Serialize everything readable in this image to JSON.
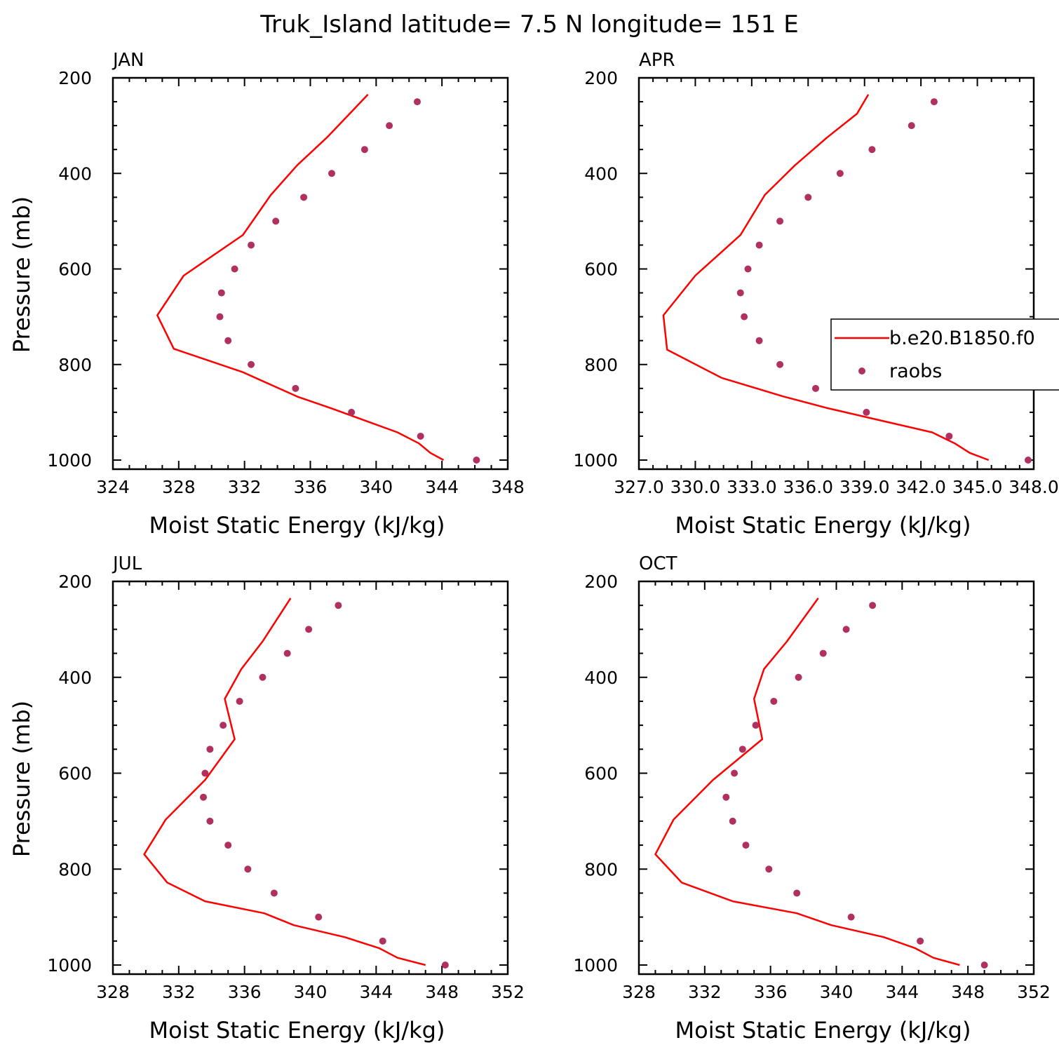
{
  "title": "Truk_Island  latitude= 7.5 N longitude= 151 E",
  "colors": {
    "model": "#ff0000",
    "obs": "#b03060",
    "axis": "#000000"
  },
  "legend": {
    "model_label": "b.e20.B1850.f0",
    "obs_label": "raobs"
  },
  "chart_data": [
    {
      "type": "line",
      "panel": "JAN",
      "xlabel": "Moist Static Energy (kJ/kg)",
      "ylabel": "Pressure (mb)",
      "xlim": [
        324,
        348
      ],
      "ylim": [
        1000,
        200
      ],
      "xticks": [
        324,
        328,
        332,
        336,
        340,
        344,
        348
      ],
      "xtick_labels": [
        "324",
        "328",
        "332",
        "336",
        "340",
        "344",
        "348"
      ],
      "yticks": [
        200,
        400,
        600,
        800,
        1000
      ],
      "ytick_labels": [
        "200",
        "400",
        "600",
        "800",
        "1000"
      ],
      "series": [
        {
          "name": "b.e20.B1850.f0",
          "kind": "line",
          "x": [
            344.1,
            343.3,
            342.6,
            341.3,
            337.3,
            335.2,
            331.9,
            327.7,
            326.7,
            328.3,
            331.9,
            333.6,
            335.2,
            337.0,
            339.5
          ],
          "y": [
            1000,
            985,
            965,
            942,
            892,
            867,
            816,
            767,
            697,
            614,
            529,
            445,
            383,
            325,
            235
          ]
        },
        {
          "name": "raobs",
          "kind": "scatter",
          "x": [
            346.1,
            342.7,
            338.5,
            335.1,
            332.4,
            331.0,
            330.5,
            330.6,
            331.4,
            332.4,
            333.9,
            335.6,
            337.3,
            339.3,
            340.8,
            342.5
          ],
          "y": [
            1000,
            950,
            900,
            850,
            800,
            750,
            700,
            650,
            600,
            550,
            500,
            450,
            400,
            350,
            300,
            250
          ]
        }
      ]
    },
    {
      "type": "line",
      "panel": "APR",
      "xlabel": "Moist Static Energy (kJ/kg)",
      "ylabel": "",
      "xlim": [
        327,
        348
      ],
      "ylim": [
        1000,
        200
      ],
      "xticks": [
        327,
        330,
        333,
        336,
        339,
        342,
        345,
        348
      ],
      "xtick_labels": [
        "327.0",
        "330.0",
        "333.0",
        "336.0",
        "339.0",
        "342.0",
        "345.0",
        "348.0"
      ],
      "yticks": [
        200,
        400,
        600,
        800,
        1000
      ],
      "ytick_labels": [
        "200",
        "400",
        "600",
        "800",
        "1000"
      ],
      "series": [
        {
          "name": "b.e20.B1850.f0",
          "kind": "line",
          "x": [
            345.6,
            344.6,
            343.8,
            342.6,
            337.1,
            334.7,
            331.4,
            328.5,
            328.3,
            330.0,
            332.4,
            333.7,
            335.3,
            337.0,
            338.6,
            339.2
          ],
          "y": [
            1000,
            985,
            965,
            942,
            892,
            867,
            828,
            769,
            697,
            614,
            529,
            445,
            383,
            325,
            275,
            235
          ]
        },
        {
          "name": "raobs",
          "kind": "scatter",
          "x": [
            347.7,
            343.5,
            339.1,
            336.4,
            334.5,
            333.4,
            332.6,
            332.4,
            332.8,
            333.4,
            334.5,
            336.0,
            337.7,
            339.4,
            341.5,
            342.7
          ],
          "y": [
            1000,
            950,
            900,
            850,
            800,
            750,
            700,
            650,
            600,
            550,
            500,
            450,
            400,
            350,
            300,
            250
          ]
        }
      ]
    },
    {
      "type": "line",
      "panel": "JUL",
      "xlabel": "Moist Static Energy (kJ/kg)",
      "ylabel": "Pressure (mb)",
      "xlim": [
        328,
        352
      ],
      "ylim": [
        1000,
        200
      ],
      "xticks": [
        328,
        332,
        336,
        340,
        344,
        348,
        352
      ],
      "xtick_labels": [
        "328",
        "332",
        "336",
        "340",
        "344",
        "348",
        "352"
      ],
      "yticks": [
        200,
        400,
        600,
        800,
        1000
      ],
      "ytick_labels": [
        "200",
        "400",
        "600",
        "800",
        "1000"
      ],
      "series": [
        {
          "name": "b.e20.B1850.f0",
          "kind": "line",
          "x": [
            347.0,
            345.3,
            344.2,
            342.1,
            339.0,
            337.2,
            333.6,
            331.3,
            329.9,
            331.2,
            333.6,
            335.4,
            334.8,
            335.8,
            337.1,
            338.8
          ],
          "y": [
            1000,
            985,
            965,
            942,
            917,
            892,
            867,
            828,
            769,
            697,
            614,
            529,
            445,
            383,
            325,
            235
          ]
        },
        {
          "name": "raobs",
          "kind": "scatter",
          "x": [
            348.2,
            344.4,
            340.5,
            337.8,
            336.2,
            335.0,
            333.9,
            333.5,
            333.6,
            333.9,
            334.7,
            335.7,
            337.1,
            338.6,
            339.9,
            341.7
          ],
          "y": [
            1000,
            950,
            900,
            850,
            800,
            750,
            700,
            650,
            600,
            550,
            500,
            450,
            400,
            350,
            300,
            250
          ]
        }
      ]
    },
    {
      "type": "line",
      "panel": "OCT",
      "xlabel": "Moist Static Energy (kJ/kg)",
      "ylabel": "",
      "xlim": [
        328,
        352
      ],
      "ylim": [
        1000,
        200
      ],
      "xticks": [
        328,
        332,
        336,
        340,
        344,
        348,
        352
      ],
      "xtick_labels": [
        "328",
        "332",
        "336",
        "340",
        "344",
        "348",
        "352"
      ],
      "yticks": [
        200,
        400,
        600,
        800,
        1000
      ],
      "ytick_labels": [
        "200",
        "400",
        "600",
        "800",
        "1000"
      ],
      "series": [
        {
          "name": "b.e20.B1850.f0",
          "kind": "line",
          "x": [
            347.5,
            345.9,
            344.8,
            342.9,
            339.7,
            337.6,
            333.7,
            330.6,
            329.0,
            330.1,
            332.5,
            335.5,
            335.0,
            335.6,
            337.0,
            338.9
          ],
          "y": [
            1000,
            985,
            965,
            942,
            917,
            892,
            867,
            828,
            769,
            697,
            614,
            529,
            445,
            383,
            325,
            235
          ]
        },
        {
          "name": "raobs",
          "kind": "scatter",
          "x": [
            349.0,
            345.1,
            340.9,
            337.6,
            335.9,
            334.5,
            333.7,
            333.3,
            333.8,
            334.3,
            335.1,
            336.2,
            337.7,
            339.2,
            340.6,
            342.2
          ],
          "y": [
            1000,
            950,
            900,
            850,
            800,
            750,
            700,
            650,
            600,
            550,
            500,
            450,
            400,
            350,
            300,
            250
          ]
        }
      ]
    }
  ]
}
